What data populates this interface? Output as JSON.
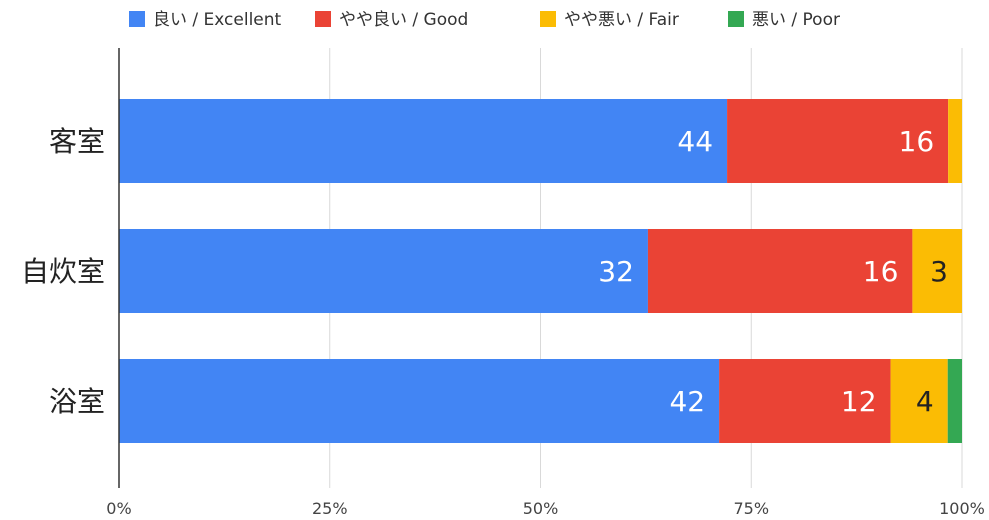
{
  "chart_data": {
    "type": "bar",
    "orientation": "horizontal",
    "stacked": "percent",
    "categories": [
      "客室",
      "自炊室",
      "浴室"
    ],
    "series": [
      {
        "name": "良い / Excellent",
        "color": "#4285F4",
        "values": [
          44,
          32,
          42
        ]
      },
      {
        "name": "やや良い / Good",
        "color": "#EA4335",
        "values": [
          16,
          16,
          12
        ]
      },
      {
        "name": "やや悪い / Fair",
        "color": "#FBBC04",
        "values": [
          1,
          3,
          4
        ]
      },
      {
        "name": "悪い / Poor",
        "color": "#34A853",
        "values": [
          0,
          0,
          1
        ]
      }
    ],
    "data_labels": [
      [
        "44",
        "16",
        "",
        ""
      ],
      [
        "32",
        "16",
        "3",
        ""
      ],
      [
        "42",
        "12",
        "4",
        ""
      ]
    ],
    "label_colors": [
      "#ffffff",
      "#ffffff",
      "#222222",
      "#ffffff"
    ],
    "xticks": [
      "0%",
      "25%",
      "50%",
      "75%",
      "100%"
    ],
    "xlim": [
      0,
      100
    ],
    "grid": true,
    "legend": "top"
  }
}
